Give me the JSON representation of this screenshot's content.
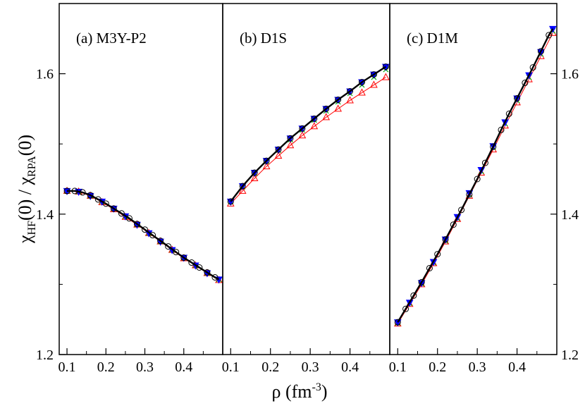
{
  "chart_data": [
    {
      "type": "line",
      "title": "(a) M3Y-P2",
      "xlim": [
        0.08,
        0.5
      ],
      "ylim": [
        1.2,
        1.7
      ],
      "x_ticks": [
        "0.1",
        "0.2",
        "0.3",
        "0.4"
      ],
      "y_ticks": [
        "1.2",
        "1.4",
        "1.6"
      ],
      "series": [
        {
          "color": "#000000",
          "marker": "line",
          "points": [
            [
              0.1,
              1.433
            ],
            [
              0.12,
              1.433
            ],
            [
              0.14,
              1.431
            ],
            [
              0.16,
              1.427
            ],
            [
              0.18,
              1.421
            ],
            [
              0.2,
              1.415
            ],
            [
              0.22,
              1.408
            ],
            [
              0.24,
              1.401
            ],
            [
              0.26,
              1.394
            ],
            [
              0.28,
              1.386
            ],
            [
              0.3,
              1.378
            ],
            [
              0.32,
              1.37
            ],
            [
              0.34,
              1.362
            ],
            [
              0.36,
              1.354
            ],
            [
              0.38,
              1.346
            ],
            [
              0.4,
              1.338
            ],
            [
              0.42,
              1.331
            ],
            [
              0.44,
              1.324
            ],
            [
              0.46,
              1.317
            ],
            [
              0.48,
              1.31
            ],
            [
              0.49,
              1.307
            ]
          ]
        },
        {
          "color": "#000000",
          "marker": "circle",
          "points": [
            [
              0.1,
              1.433
            ],
            [
              0.12,
              1.433
            ],
            [
              0.14,
              1.431
            ],
            [
              0.16,
              1.427
            ],
            [
              0.18,
              1.421
            ],
            [
              0.2,
              1.415
            ],
            [
              0.22,
              1.408
            ],
            [
              0.24,
              1.401
            ],
            [
              0.26,
              1.394
            ],
            [
              0.28,
              1.386
            ],
            [
              0.3,
              1.378
            ],
            [
              0.32,
              1.37
            ],
            [
              0.34,
              1.362
            ],
            [
              0.36,
              1.354
            ],
            [
              0.38,
              1.346
            ],
            [
              0.4,
              1.338
            ],
            [
              0.42,
              1.331
            ],
            [
              0.44,
              1.324
            ],
            [
              0.46,
              1.317
            ],
            [
              0.48,
              1.31
            ]
          ]
        },
        {
          "color": "#ff0000",
          "marker": "triangle-up",
          "points": [
            [
              0.1,
              1.433
            ],
            [
              0.13,
              1.432
            ],
            [
              0.16,
              1.426
            ],
            [
              0.19,
              1.417
            ],
            [
              0.22,
              1.407
            ],
            [
              0.25,
              1.396
            ],
            [
              0.28,
              1.385
            ],
            [
              0.31,
              1.373
            ],
            [
              0.34,
              1.361
            ],
            [
              0.37,
              1.349
            ],
            [
              0.4,
              1.337
            ],
            [
              0.43,
              1.327
            ],
            [
              0.46,
              1.316
            ],
            [
              0.49,
              1.306
            ]
          ]
        },
        {
          "color": "#00aa00",
          "marker": "x",
          "points": [
            [
              0.1,
              1.433
            ],
            [
              0.13,
              1.432
            ],
            [
              0.16,
              1.426
            ],
            [
              0.19,
              1.418
            ],
            [
              0.22,
              1.408
            ],
            [
              0.25,
              1.397
            ],
            [
              0.28,
              1.385
            ],
            [
              0.31,
              1.373
            ],
            [
              0.34,
              1.361
            ],
            [
              0.37,
              1.349
            ],
            [
              0.4,
              1.338
            ],
            [
              0.43,
              1.327
            ],
            [
              0.46,
              1.316
            ],
            [
              0.49,
              1.307
            ]
          ]
        },
        {
          "color": "#0000ff",
          "marker": "triangle-down",
          "points": [
            [
              0.1,
              1.433
            ],
            [
              0.13,
              1.432
            ],
            [
              0.16,
              1.426
            ],
            [
              0.19,
              1.418
            ],
            [
              0.22,
              1.408
            ],
            [
              0.25,
              1.397
            ],
            [
              0.28,
              1.385
            ],
            [
              0.31,
              1.373
            ],
            [
              0.34,
              1.361
            ],
            [
              0.37,
              1.349
            ],
            [
              0.4,
              1.338
            ],
            [
              0.43,
              1.327
            ],
            [
              0.46,
              1.316
            ],
            [
              0.49,
              1.307
            ]
          ]
        }
      ]
    },
    {
      "type": "line",
      "title": "(b) D1S",
      "xlim": [
        0.08,
        0.5
      ],
      "ylim": [
        1.2,
        1.7
      ],
      "x_ticks": [
        "0.1",
        "0.2",
        "0.3",
        "0.4"
      ],
      "y_ticks": [
        "1.2",
        "1.4",
        "1.6"
      ],
      "series": [
        {
          "color": "#000000",
          "marker": "line",
          "points": [
            [
              0.1,
              1.418
            ],
            [
              0.13,
              1.44
            ],
            [
              0.16,
              1.459
            ],
            [
              0.19,
              1.476
            ],
            [
              0.22,
              1.492
            ],
            [
              0.25,
              1.508
            ],
            [
              0.28,
              1.522
            ],
            [
              0.31,
              1.536
            ],
            [
              0.34,
              1.55
            ],
            [
              0.37,
              1.563
            ],
            [
              0.4,
              1.575
            ],
            [
              0.43,
              1.588
            ],
            [
              0.46,
              1.599
            ],
            [
              0.49,
              1.61
            ]
          ]
        },
        {
          "color": "#000000",
          "marker": "circle",
          "points": [
            [
              0.1,
              1.418
            ],
            [
              0.13,
              1.44
            ],
            [
              0.16,
              1.459
            ],
            [
              0.19,
              1.476
            ],
            [
              0.22,
              1.492
            ],
            [
              0.25,
              1.508
            ],
            [
              0.28,
              1.522
            ],
            [
              0.31,
              1.536
            ],
            [
              0.34,
              1.55
            ],
            [
              0.37,
              1.563
            ],
            [
              0.4,
              1.575
            ],
            [
              0.43,
              1.588
            ],
            [
              0.46,
              1.599
            ],
            [
              0.49,
              1.61
            ]
          ]
        },
        {
          "color": "#ff0000",
          "marker": "triangle-up",
          "points": [
            [
              0.1,
              1.415
            ],
            [
              0.13,
              1.433
            ],
            [
              0.16,
              1.451
            ],
            [
              0.19,
              1.468
            ],
            [
              0.22,
              1.483
            ],
            [
              0.25,
              1.498
            ],
            [
              0.28,
              1.512
            ],
            [
              0.31,
              1.525
            ],
            [
              0.34,
              1.538
            ],
            [
              0.37,
              1.55
            ],
            [
              0.4,
              1.562
            ],
            [
              0.43,
              1.573
            ],
            [
              0.46,
              1.584
            ],
            [
              0.49,
              1.595
            ]
          ]
        },
        {
          "color": "#00aa00",
          "marker": "x",
          "points": [
            [
              0.1,
              1.418
            ],
            [
              0.13,
              1.439
            ],
            [
              0.16,
              1.458
            ],
            [
              0.19,
              1.475
            ],
            [
              0.22,
              1.491
            ],
            [
              0.25,
              1.506
            ],
            [
              0.28,
              1.52
            ],
            [
              0.31,
              1.534
            ],
            [
              0.34,
              1.547
            ],
            [
              0.37,
              1.56
            ],
            [
              0.4,
              1.572
            ],
            [
              0.43,
              1.584
            ],
            [
              0.46,
              1.595
            ],
            [
              0.49,
              1.606
            ]
          ]
        },
        {
          "color": "#0000ff",
          "marker": "triangle-down",
          "points": [
            [
              0.1,
              1.418
            ],
            [
              0.13,
              1.44
            ],
            [
              0.16,
              1.459
            ],
            [
              0.19,
              1.476
            ],
            [
              0.22,
              1.492
            ],
            [
              0.25,
              1.508
            ],
            [
              0.28,
              1.522
            ],
            [
              0.31,
              1.536
            ],
            [
              0.34,
              1.55
            ],
            [
              0.37,
              1.563
            ],
            [
              0.4,
              1.575
            ],
            [
              0.43,
              1.588
            ],
            [
              0.46,
              1.599
            ],
            [
              0.49,
              1.61
            ]
          ]
        }
      ]
    },
    {
      "type": "line",
      "title": "(c) D1M",
      "xlim": [
        0.08,
        0.5
      ],
      "ylim": [
        1.2,
        1.7
      ],
      "x_ticks": [
        "0.1",
        "0.2",
        "0.3",
        "0.4"
      ],
      "y_ticks": [
        "1.2",
        "1.4",
        "1.6"
      ],
      "series": [
        {
          "color": "#000000",
          "marker": "line",
          "points": [
            [
              0.1,
              1.246
            ],
            [
              0.12,
              1.265
            ],
            [
              0.14,
              1.284
            ],
            [
              0.16,
              1.303
            ],
            [
              0.18,
              1.323
            ],
            [
              0.2,
              1.343
            ],
            [
              0.22,
              1.364
            ],
            [
              0.24,
              1.385
            ],
            [
              0.26,
              1.406
            ],
            [
              0.28,
              1.428
            ],
            [
              0.3,
              1.45
            ],
            [
              0.32,
              1.473
            ],
            [
              0.34,
              1.496
            ],
            [
              0.36,
              1.52
            ],
            [
              0.38,
              1.543
            ],
            [
              0.4,
              1.565
            ],
            [
              0.42,
              1.587
            ],
            [
              0.44,
              1.609
            ],
            [
              0.46,
              1.632
            ],
            [
              0.48,
              1.655
            ],
            [
              0.49,
              1.664
            ]
          ]
        },
        {
          "color": "#000000",
          "marker": "circle",
          "points": [
            [
              0.1,
              1.246
            ],
            [
              0.12,
              1.265
            ],
            [
              0.14,
              1.284
            ],
            [
              0.16,
              1.303
            ],
            [
              0.18,
              1.323
            ],
            [
              0.2,
              1.343
            ],
            [
              0.22,
              1.364
            ],
            [
              0.24,
              1.385
            ],
            [
              0.26,
              1.406
            ],
            [
              0.28,
              1.428
            ],
            [
              0.3,
              1.45
            ],
            [
              0.32,
              1.473
            ],
            [
              0.34,
              1.496
            ],
            [
              0.36,
              1.52
            ],
            [
              0.38,
              1.543
            ],
            [
              0.4,
              1.565
            ],
            [
              0.42,
              1.587
            ],
            [
              0.44,
              1.609
            ],
            [
              0.46,
              1.632
            ],
            [
              0.48,
              1.655
            ]
          ]
        },
        {
          "color": "#ff0000",
          "marker": "triangle-up",
          "points": [
            [
              0.1,
              1.244
            ],
            [
              0.13,
              1.272
            ],
            [
              0.16,
              1.3
            ],
            [
              0.19,
              1.33
            ],
            [
              0.22,
              1.361
            ],
            [
              0.25,
              1.393
            ],
            [
              0.28,
              1.426
            ],
            [
              0.31,
              1.459
            ],
            [
              0.34,
              1.492
            ],
            [
              0.37,
              1.526
            ],
            [
              0.4,
              1.559
            ],
            [
              0.43,
              1.592
            ],
            [
              0.46,
              1.625
            ],
            [
              0.49,
              1.658
            ]
          ]
        },
        {
          "color": "#00aa00",
          "marker": "x",
          "points": [
            [
              0.1,
              1.245
            ],
            [
              0.13,
              1.273
            ],
            [
              0.16,
              1.301
            ],
            [
              0.19,
              1.331
            ],
            [
              0.22,
              1.362
            ],
            [
              0.25,
              1.394
            ],
            [
              0.28,
              1.428
            ],
            [
              0.31,
              1.461
            ],
            [
              0.34,
              1.495
            ],
            [
              0.37,
              1.529
            ],
            [
              0.4,
              1.562
            ],
            [
              0.43,
              1.595
            ],
            [
              0.46,
              1.628
            ],
            [
              0.49,
              1.661
            ]
          ]
        },
        {
          "color": "#0000ff",
          "marker": "triangle-down",
          "points": [
            [
              0.1,
              1.246
            ],
            [
              0.13,
              1.274
            ],
            [
              0.16,
              1.302
            ],
            [
              0.19,
              1.332
            ],
            [
              0.22,
              1.364
            ],
            [
              0.25,
              1.396
            ],
            [
              0.28,
              1.43
            ],
            [
              0.31,
              1.463
            ],
            [
              0.34,
              1.497
            ],
            [
              0.37,
              1.531
            ],
            [
              0.4,
              1.565
            ],
            [
              0.43,
              1.598
            ],
            [
              0.46,
              1.631
            ],
            [
              0.49,
              1.664
            ]
          ]
        }
      ]
    }
  ],
  "axes": {
    "xlabel": {
      "main": "ρ (fm",
      "sup": "-3",
      "end": ")"
    },
    "ylabel": {
      "a": "χ",
      "a_sub": "HF",
      "b": "(0) / χ",
      "b_sub": "RPA",
      "c": "(0)"
    }
  }
}
